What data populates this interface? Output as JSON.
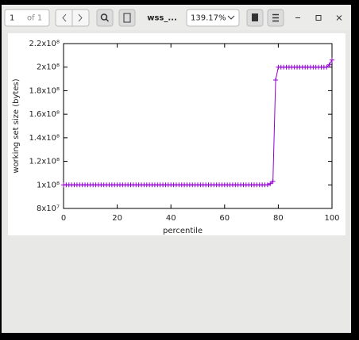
{
  "toolbar": {
    "page": "1",
    "page_count": "of 1",
    "document_title": "wss_...",
    "zoom": "139.17%"
  },
  "chart_data": {
    "type": "line",
    "xlabel": "percentile",
    "ylabel": "working set size (bytes)",
    "color": "#9400d3",
    "x": [
      0,
      1,
      2,
      3,
      4,
      5,
      6,
      7,
      8,
      9,
      10,
      11,
      12,
      13,
      14,
      15,
      16,
      17,
      18,
      19,
      20,
      21,
      22,
      23,
      24,
      25,
      26,
      27,
      28,
      29,
      30,
      31,
      32,
      33,
      34,
      35,
      36,
      37,
      38,
      39,
      40,
      41,
      42,
      43,
      44,
      45,
      46,
      47,
      48,
      49,
      50,
      51,
      52,
      53,
      54,
      55,
      56,
      57,
      58,
      59,
      60,
      61,
      62,
      63,
      64,
      65,
      66,
      67,
      68,
      69,
      70,
      71,
      72,
      73,
      74,
      75,
      76,
      77,
      78,
      79,
      80,
      81,
      82,
      83,
      84,
      85,
      86,
      87,
      88,
      89,
      90,
      91,
      92,
      93,
      94,
      95,
      96,
      97,
      98,
      99,
      100
    ],
    "values": [
      100000000,
      100000000,
      100000000,
      100000000,
      100000000,
      100000000,
      100000000,
      100000000,
      100000000,
      100000000,
      100000000,
      100000000,
      100000000,
      100000000,
      100000000,
      100000000,
      100000000,
      100000000,
      100000000,
      100000000,
      100000000,
      100000000,
      100000000,
      100000000,
      100000000,
      100000000,
      100000000,
      100000000,
      100000000,
      100000000,
      100000000,
      100000000,
      100000000,
      100000000,
      100000000,
      100000000,
      100000000,
      100000000,
      100000000,
      100000000,
      100000000,
      100000000,
      100000000,
      100000000,
      100000000,
      100000000,
      100000000,
      100000000,
      100000000,
      100000000,
      100000000,
      100000000,
      100000000,
      100000000,
      100000000,
      100000000,
      100000000,
      100000000,
      100000000,
      100000000,
      100000000,
      100000000,
      100000000,
      100000000,
      100000000,
      100000000,
      100000000,
      100000000,
      100000000,
      100000000,
      100000000,
      100000000,
      100000000,
      100000000,
      100000000,
      100000000,
      100000000,
      101000000,
      103000000,
      189000000,
      200000000,
      200000000,
      200000000,
      200000000,
      200000000,
      200000000,
      200000000,
      200000000,
      200000000,
      200000000,
      200000000,
      200000000,
      200000000,
      200000000,
      200000000,
      200000000,
      200000000,
      200000000,
      200000000,
      202000000,
      206000000
    ],
    "xlim": [
      0,
      100
    ],
    "xticks": [
      0,
      20,
      40,
      60,
      80,
      100
    ],
    "ylim": [
      80000000,
      220000000
    ],
    "yticks": [
      {
        "value": 80000000,
        "label": "8x10⁷"
      },
      {
        "value": 100000000,
        "label": "1x10⁸"
      },
      {
        "value": 120000000,
        "label": "1.2x10⁸"
      },
      {
        "value": 140000000,
        "label": "1.4x10⁸"
      },
      {
        "value": 160000000,
        "label": "1.6x10⁸"
      },
      {
        "value": 180000000,
        "label": "1.8x10⁸"
      },
      {
        "value": 200000000,
        "label": "2x10⁸"
      },
      {
        "value": 220000000,
        "label": "2.2x10⁸"
      }
    ],
    "grid": false
  }
}
